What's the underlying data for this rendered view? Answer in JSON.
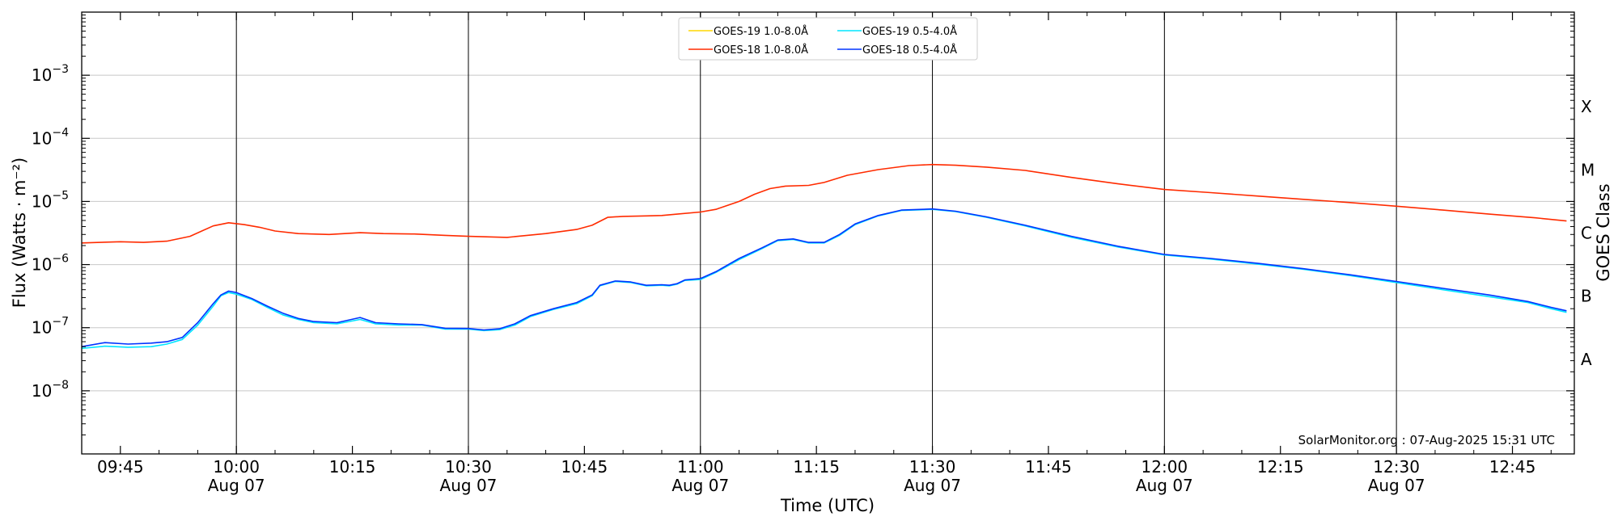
{
  "chart_data": {
    "type": "line",
    "xlabel": "Time (UTC)",
    "ylabel": "Flux (Watts · m⁻²)",
    "y2label": "GOES Class",
    "credit": "SolarMonitor.org : 07-Aug-2025 15:31 UTC",
    "yscale": "log",
    "ylim": [
      1e-09,
      0.01
    ],
    "xlim": [
      "09:40",
      "12:53"
    ],
    "grid": true,
    "legend_position": "top-center",
    "date_label": "Aug 07",
    "x_ticks": [
      {
        "time": "09:45",
        "label": "09:45",
        "date": ""
      },
      {
        "time": "10:00",
        "label": "10:00",
        "date": "Aug 07"
      },
      {
        "time": "10:15",
        "label": "10:15",
        "date": ""
      },
      {
        "time": "10:30",
        "label": "10:30",
        "date": "Aug 07"
      },
      {
        "time": "10:45",
        "label": "10:45",
        "date": ""
      },
      {
        "time": "11:00",
        "label": "11:00",
        "date": "Aug 07"
      },
      {
        "time": "11:15",
        "label": "11:15",
        "date": ""
      },
      {
        "time": "11:30",
        "label": "11:30",
        "date": "Aug 07"
      },
      {
        "time": "11:45",
        "label": "11:45",
        "date": ""
      },
      {
        "time": "12:00",
        "label": "12:00",
        "date": "Aug 07"
      },
      {
        "time": "12:15",
        "label": "12:15",
        "date": ""
      },
      {
        "time": "12:30",
        "label": "12:30",
        "date": "Aug 07"
      },
      {
        "time": "12:45",
        "label": "12:45",
        "date": ""
      }
    ],
    "y_ticks": [
      {
        "value": 1e-08,
        "base": "10",
        "exp": "−8"
      },
      {
        "value": 1e-07,
        "base": "10",
        "exp": "−7"
      },
      {
        "value": 1e-06,
        "base": "10",
        "exp": "−6"
      },
      {
        "value": 1e-05,
        "base": "10",
        "exp": "−5"
      },
      {
        "value": 0.0001,
        "base": "10",
        "exp": "−4"
      },
      {
        "value": 0.001,
        "base": "10",
        "exp": "−3"
      }
    ],
    "goes_classes": [
      {
        "label": "A",
        "value": 3.16e-08
      },
      {
        "label": "B",
        "value": 3.16e-07
      },
      {
        "label": "C",
        "value": 3.16e-06
      },
      {
        "label": "M",
        "value": 3.16e-05
      },
      {
        "label": "X",
        "value": 0.000316
      }
    ],
    "series": [
      {
        "name": "GOES-19 1.0-8.0Å",
        "color": "#ffd700",
        "points": []
      },
      {
        "name": "GOES-19 0.5-4.0Å",
        "color": "#00e5ff",
        "points": [
          [
            "09:40",
            4.7e-08
          ],
          [
            "09:43",
            5.1e-08
          ],
          [
            "09:46",
            4.9e-08
          ],
          [
            "09:49",
            5e-08
          ],
          [
            "09:51",
            5.5e-08
          ],
          [
            "09:53",
            6.5e-08
          ],
          [
            "09:55",
            1.1e-07
          ],
          [
            "09:57",
            2.2e-07
          ],
          [
            "09:58",
            3.2e-07
          ],
          [
            "09:59",
            3.6e-07
          ],
          [
            "10:00",
            3.4e-07
          ],
          [
            "10:02",
            2.8e-07
          ],
          [
            "10:04",
            2.1e-07
          ],
          [
            "10:06",
            1.6e-07
          ],
          [
            "10:08",
            1.35e-07
          ],
          [
            "10:10",
            1.2e-07
          ],
          [
            "10:13",
            1.15e-07
          ],
          [
            "10:16",
            1.35e-07
          ],
          [
            "10:18",
            1.15e-07
          ],
          [
            "10:21",
            1.1e-07
          ],
          [
            "10:24",
            1.1e-07
          ],
          [
            "10:27",
            9.5e-08
          ],
          [
            "10:30",
            9.5e-08
          ],
          [
            "10:32",
            9e-08
          ],
          [
            "10:34",
            9.3e-08
          ],
          [
            "10:36",
            1.1e-07
          ],
          [
            "10:38",
            1.5e-07
          ],
          [
            "10:41",
            1.95e-07
          ],
          [
            "10:44",
            2.4e-07
          ],
          [
            "10:46",
            3.2e-07
          ],
          [
            "10:47",
            4.6e-07
          ],
          [
            "10:49",
            5.4e-07
          ],
          [
            "10:51",
            5.2e-07
          ],
          [
            "10:53",
            4.6e-07
          ],
          [
            "10:55",
            4.7e-07
          ],
          [
            "10:56",
            4.6e-07
          ],
          [
            "10:57",
            4.9e-07
          ],
          [
            "10:58",
            5.6e-07
          ],
          [
            "11:00",
            5.8e-07
          ],
          [
            "11:02",
            7.5e-07
          ],
          [
            "11:05",
            1.2e-06
          ],
          [
            "11:08",
            1.8e-06
          ],
          [
            "11:10",
            2.4e-06
          ],
          [
            "11:12",
            2.5e-06
          ],
          [
            "11:14",
            2.2e-06
          ],
          [
            "11:16",
            2.2e-06
          ],
          [
            "11:18",
            2.9e-06
          ],
          [
            "11:20",
            4.3e-06
          ],
          [
            "11:23",
            5.9e-06
          ],
          [
            "11:26",
            7.2e-06
          ],
          [
            "11:30",
            7.5e-06
          ],
          [
            "11:33",
            6.9e-06
          ],
          [
            "11:37",
            5.6e-06
          ],
          [
            "11:42",
            4.1e-06
          ],
          [
            "11:48",
            2.7e-06
          ],
          [
            "11:54",
            1.9e-06
          ],
          [
            "12:00",
            1.42e-06
          ],
          [
            "12:06",
            1.22e-06
          ],
          [
            "12:12",
            1.02e-06
          ],
          [
            "12:18",
            8.4e-07
          ],
          [
            "12:24",
            6.7e-07
          ],
          [
            "12:30",
            5.2e-07
          ],
          [
            "12:36",
            4e-07
          ],
          [
            "12:42",
            3.1e-07
          ],
          [
            "12:47",
            2.5e-07
          ],
          [
            "12:50",
            2e-07
          ],
          [
            "12:52",
            1.75e-07
          ]
        ]
      },
      {
        "name": "GOES-18 1.0-8.0Å",
        "color": "#ff2b00",
        "points": [
          [
            "09:40",
            2.2e-06
          ],
          [
            "09:45",
            2.3e-06
          ],
          [
            "09:48",
            2.25e-06
          ],
          [
            "09:51",
            2.35e-06
          ],
          [
            "09:54",
            2.8e-06
          ],
          [
            "09:57",
            4.1e-06
          ],
          [
            "09:59",
            4.6e-06
          ],
          [
            "10:01",
            4.3e-06
          ],
          [
            "10:03",
            3.9e-06
          ],
          [
            "10:05",
            3.4e-06
          ],
          [
            "10:08",
            3.1e-06
          ],
          [
            "10:12",
            3e-06
          ],
          [
            "10:16",
            3.2e-06
          ],
          [
            "10:19",
            3.1e-06
          ],
          [
            "10:23",
            3.05e-06
          ],
          [
            "10:27",
            2.9e-06
          ],
          [
            "10:30",
            2.8e-06
          ],
          [
            "10:35",
            2.7e-06
          ],
          [
            "10:40",
            3.1e-06
          ],
          [
            "10:44",
            3.6e-06
          ],
          [
            "10:46",
            4.2e-06
          ],
          [
            "10:48",
            5.6e-06
          ],
          [
            "10:50",
            5.8e-06
          ],
          [
            "10:53",
            5.9e-06
          ],
          [
            "10:55",
            6e-06
          ],
          [
            "10:57",
            6.3e-06
          ],
          [
            "11:00",
            6.8e-06
          ],
          [
            "11:02",
            7.5e-06
          ],
          [
            "11:05",
            1e-05
          ],
          [
            "11:07",
            1.3e-05
          ],
          [
            "11:09",
            1.6e-05
          ],
          [
            "11:11",
            1.75e-05
          ],
          [
            "11:14",
            1.8e-05
          ],
          [
            "11:16",
            2e-05
          ],
          [
            "11:19",
            2.6e-05
          ],
          [
            "11:23",
            3.2e-05
          ],
          [
            "11:27",
            3.7e-05
          ],
          [
            "11:30",
            3.85e-05
          ],
          [
            "11:33",
            3.75e-05
          ],
          [
            "11:37",
            3.5e-05
          ],
          [
            "11:42",
            3.1e-05
          ],
          [
            "11:48",
            2.4e-05
          ],
          [
            "11:54",
            1.9e-05
          ],
          [
            "12:00",
            1.55e-05
          ],
          [
            "12:06",
            1.38e-05
          ],
          [
            "12:12",
            1.22e-05
          ],
          [
            "12:18",
            1.08e-05
          ],
          [
            "12:24",
            9.6e-06
          ],
          [
            "12:30",
            8.4e-06
          ],
          [
            "12:36",
            7.3e-06
          ],
          [
            "12:42",
            6.3e-06
          ],
          [
            "12:48",
            5.5e-06
          ],
          [
            "12:52",
            4.9e-06
          ]
        ]
      },
      {
        "name": "GOES-18 0.5-4.0Å",
        "color": "#0033ff",
        "points": [
          [
            "09:40",
            5e-08
          ],
          [
            "09:43",
            5.8e-08
          ],
          [
            "09:46",
            5.5e-08
          ],
          [
            "09:49",
            5.7e-08
          ],
          [
            "09:51",
            6e-08
          ],
          [
            "09:53",
            7e-08
          ],
          [
            "09:55",
            1.2e-07
          ],
          [
            "09:57",
            2.4e-07
          ],
          [
            "09:58",
            3.3e-07
          ],
          [
            "09:59",
            3.8e-07
          ],
          [
            "10:00",
            3.6e-07
          ],
          [
            "10:02",
            2.9e-07
          ],
          [
            "10:04",
            2.2e-07
          ],
          [
            "10:06",
            1.7e-07
          ],
          [
            "10:08",
            1.4e-07
          ],
          [
            "10:10",
            1.25e-07
          ],
          [
            "10:13",
            1.2e-07
          ],
          [
            "10:16",
            1.45e-07
          ],
          [
            "10:18",
            1.2e-07
          ],
          [
            "10:21",
            1.15e-07
          ],
          [
            "10:24",
            1.12e-07
          ],
          [
            "10:27",
            9.8e-08
          ],
          [
            "10:30",
            9.7e-08
          ],
          [
            "10:32",
            9.2e-08
          ],
          [
            "10:34",
            9.6e-08
          ],
          [
            "10:36",
            1.15e-07
          ],
          [
            "10:38",
            1.55e-07
          ],
          [
            "10:41",
            2e-07
          ],
          [
            "10:44",
            2.5e-07
          ],
          [
            "10:46",
            3.3e-07
          ],
          [
            "10:47",
            4.7e-07
          ],
          [
            "10:49",
            5.5e-07
          ],
          [
            "10:51",
            5.3e-07
          ],
          [
            "10:53",
            4.7e-07
          ],
          [
            "10:55",
            4.8e-07
          ],
          [
            "10:56",
            4.7e-07
          ],
          [
            "10:57",
            5e-07
          ],
          [
            "10:58",
            5.7e-07
          ],
          [
            "11:00",
            6e-07
          ],
          [
            "11:02",
            7.7e-07
          ],
          [
            "11:05",
            1.25e-06
          ],
          [
            "11:08",
            1.85e-06
          ],
          [
            "11:10",
            2.45e-06
          ],
          [
            "11:12",
            2.55e-06
          ],
          [
            "11:14",
            2.25e-06
          ],
          [
            "11:16",
            2.25e-06
          ],
          [
            "11:18",
            3e-06
          ],
          [
            "11:20",
            4.4e-06
          ],
          [
            "11:23",
            6e-06
          ],
          [
            "11:26",
            7.3e-06
          ],
          [
            "11:30",
            7.6e-06
          ],
          [
            "11:33",
            7e-06
          ],
          [
            "11:37",
            5.7e-06
          ],
          [
            "11:42",
            4.2e-06
          ],
          [
            "11:48",
            2.8e-06
          ],
          [
            "11:54",
            1.95e-06
          ],
          [
            "12:00",
            1.45e-06
          ],
          [
            "12:06",
            1.25e-06
          ],
          [
            "12:12",
            1.05e-06
          ],
          [
            "12:18",
            8.6e-07
          ],
          [
            "12:24",
            6.9e-07
          ],
          [
            "12:30",
            5.4e-07
          ],
          [
            "12:36",
            4.2e-07
          ],
          [
            "12:42",
            3.3e-07
          ],
          [
            "12:47",
            2.6e-07
          ],
          [
            "12:50",
            2.1e-07
          ],
          [
            "12:52",
            1.85e-07
          ]
        ]
      }
    ]
  }
}
